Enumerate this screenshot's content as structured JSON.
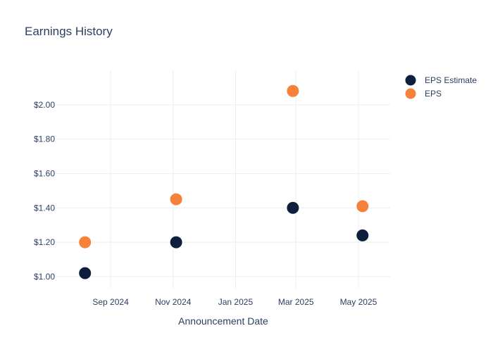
{
  "chart_data": {
    "type": "scatter",
    "title": "Earnings History",
    "xlabel": "Announcement Date",
    "ylabel": "",
    "x_ticks": [
      "Sep 2024",
      "Nov 2024",
      "Jan 2025",
      "Mar 2025",
      "May 2025"
    ],
    "x_tick_dates": [
      "2024-09-01",
      "2024-11-01",
      "2025-01-01",
      "2025-03-01",
      "2025-05-01"
    ],
    "xlim": [
      "2024-07-10",
      "2025-06-01"
    ],
    "y_ticks": [
      "$1.00",
      "$1.20",
      "$1.40",
      "$1.60",
      "$1.80",
      "$2.00"
    ],
    "y_tick_values": [
      1.0,
      1.2,
      1.4,
      1.6,
      1.8,
      2.0
    ],
    "ylim": [
      0.93,
      2.2
    ],
    "grid": true,
    "legend_position": "top-right",
    "series": [
      {
        "name": "EPS Estimate",
        "color": "#0d1f3c",
        "x": [
          "2024-08-07",
          "2024-11-04",
          "2025-02-26",
          "2025-05-05"
        ],
        "values": [
          1.02,
          1.2,
          1.4,
          1.24
        ]
      },
      {
        "name": "EPS",
        "color": "#f5813a",
        "x": [
          "2024-08-07",
          "2024-11-04",
          "2025-02-26",
          "2025-05-05"
        ],
        "values": [
          1.2,
          1.45,
          2.08,
          1.41
        ]
      }
    ]
  }
}
